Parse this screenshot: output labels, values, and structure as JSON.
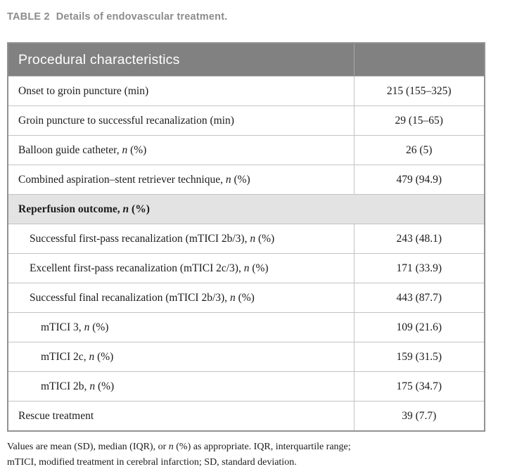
{
  "caption": {
    "label": "TABLE 2",
    "text": "Details of endovascular treatment."
  },
  "table": {
    "header": {
      "col1": "Procedural characteristics",
      "col2": ""
    },
    "rows": [
      {
        "label": "Onset to groin puncture (min)",
        "value": "215 (155–325)",
        "indent": 0,
        "section": false
      },
      {
        "label": "Groin puncture to successful recanalization (min)",
        "value": "29 (15–65)",
        "indent": 0,
        "section": false
      },
      {
        "label": "Balloon guide catheter, *n* (%)",
        "value": "26 (5)",
        "indent": 0,
        "section": false
      },
      {
        "label": "Combined aspiration–stent retriever technique, *n* (%)",
        "value": "479 (94.9)",
        "indent": 0,
        "section": false
      },
      {
        "label": "Reperfusion outcome, *n* (%)",
        "value": "",
        "indent": 0,
        "section": true
      },
      {
        "label": "Successful first-pass recanalization (mTICI 2b/3), *n* (%)",
        "value": "243 (48.1)",
        "indent": 1,
        "section": false
      },
      {
        "label": "Excellent first-pass recanalization (mTICI 2c/3), *n* (%)",
        "value": "171 (33.9)",
        "indent": 1,
        "section": false
      },
      {
        "label": "Successful final recanalization (mTICI 2b/3), *n* (%)",
        "value": "443 (87.7)",
        "indent": 1,
        "section": false
      },
      {
        "label": "mTICI 3, *n* (%)",
        "value": "109 (21.6)",
        "indent": 2,
        "section": false
      },
      {
        "label": "mTICI 2c, *n* (%)",
        "value": "159 (31.5)",
        "indent": 2,
        "section": false
      },
      {
        "label": "mTICI 2b, *n* (%)",
        "value": "175 (34.7)",
        "indent": 2,
        "section": false
      },
      {
        "label": "Rescue treatment",
        "value": "39 (7.7)",
        "indent": 0,
        "section": false
      }
    ],
    "footnote_lines": [
      "Values are mean (SD), median (IQR), or *n* (%) as appropriate. IQR, interquartile range;",
      "mTICI, modified treatment in cerebral infarction; SD, standard deviation."
    ]
  },
  "colors": {
    "header_bg": "#818181",
    "header_text": "#ffffff",
    "section_row_bg": "#e3e3e3",
    "caption_text": "#8c8c8c",
    "outer_border": "#929292",
    "inner_border": "#c3c3c3",
    "body_text": "#1b1b1b"
  }
}
